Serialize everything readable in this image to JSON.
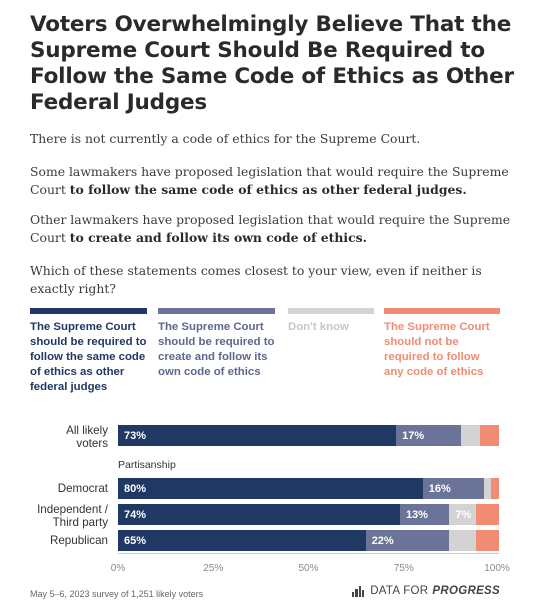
{
  "title": "Voters Overwhelmingly Believe That the Supreme Court Should Be Required to Follow the Same Code of Ethics as Other Federal Judges",
  "intro": "There is not currently a code of ethics for the Supreme Court.",
  "paragraph1": {
    "plain": "Some lawmakers have proposed legislation that would require the Supreme Court ",
    "bold": "to follow the same code of ethics as other federal judges."
  },
  "paragraph2": {
    "plain": "Other lawmakers have proposed legislation that would require the Supreme Court ",
    "bold": "to create and follow its own code of ethics."
  },
  "question": "Which of these statements comes closest to your view, even if neither is exactly right?",
  "chart_data": {
    "type": "bar",
    "orientation": "horizontal-stacked",
    "xlim": [
      0,
      100
    ],
    "ticks": [
      "0%",
      "25%",
      "50%",
      "75%",
      "100%"
    ],
    "section_label": "Partisanship",
    "series": [
      {
        "name": "The Supreme Court should be required to follow the same code of ethics as other federal judges",
        "color": "#1f3864"
      },
      {
        "name": "The Supreme Court should be required to create and follow its own code of ethics",
        "color": "#6b7399"
      },
      {
        "name": "Don't know",
        "color": "#d3d3d3"
      },
      {
        "name": "The Supreme Court should not be required to follow any code of ethics",
        "color": "#f28b73"
      }
    ],
    "rows": [
      {
        "label": "All likely voters",
        "values": [
          73,
          17,
          5,
          5
        ],
        "labels": [
          "73%",
          "17%",
          "",
          ""
        ]
      },
      {
        "label": "Democrat",
        "values": [
          80,
          16,
          2,
          2
        ],
        "labels": [
          "80%",
          "16%",
          "",
          ""
        ]
      },
      {
        "label": "Independent / Third party",
        "values": [
          74,
          13,
          7,
          6
        ],
        "labels": [
          "74%",
          "13%",
          "7%",
          ""
        ]
      },
      {
        "label": "Republican",
        "values": [
          65,
          22,
          7,
          6
        ],
        "labels": [
          "65%",
          "22%",
          "",
          ""
        ]
      }
    ]
  },
  "footer": {
    "note": "May 5–6, 2023 survey of 1,251 likely voters",
    "brand_plain": "DATA FOR",
    "brand_bold": "PROGRESS"
  }
}
